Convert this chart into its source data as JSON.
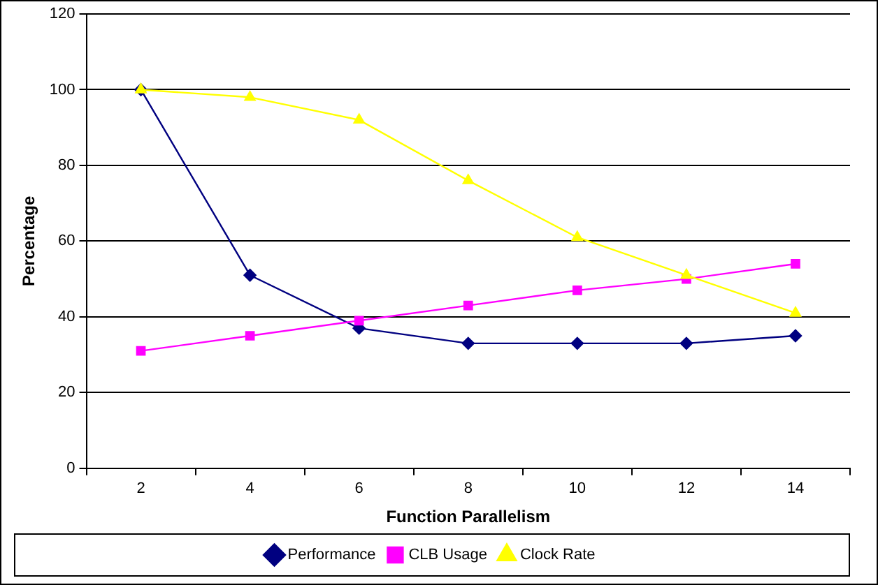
{
  "chart_data": {
    "type": "line",
    "xlabel": "Function Parallelism",
    "ylabel": "Percentage",
    "categories": [
      "2",
      "4",
      "6",
      "8",
      "10",
      "12",
      "14"
    ],
    "series": [
      {
        "name": "Performance",
        "color": "#000080",
        "marker": "diamond",
        "values": [
          100,
          51,
          37,
          33,
          33,
          33,
          35
        ]
      },
      {
        "name": "CLB Usage",
        "color": "#ff00ff",
        "marker": "square",
        "values": [
          31,
          35,
          39,
          43,
          47,
          50,
          54
        ]
      },
      {
        "name": "Clock Rate",
        "color": "#ffff00",
        "marker": "triangle",
        "values": [
          100,
          98,
          92,
          76,
          61,
          51,
          41
        ]
      }
    ],
    "ylim": [
      0,
      120
    ],
    "yticks": [
      0,
      20,
      40,
      60,
      80,
      100,
      120
    ],
    "grid": "y",
    "legend": "bottom"
  }
}
